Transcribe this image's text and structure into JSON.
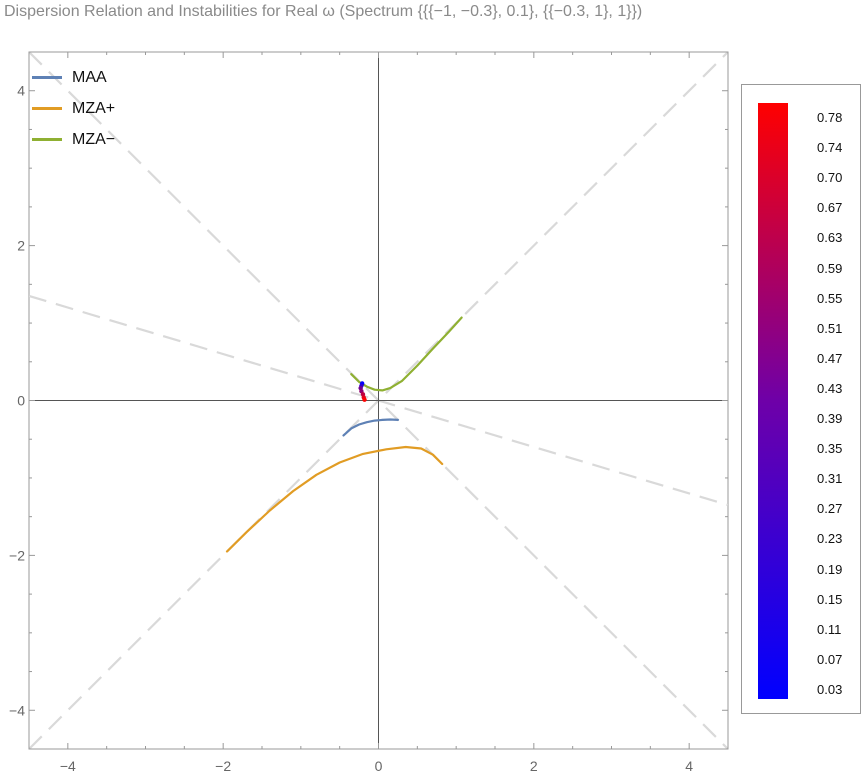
{
  "title": "Dispersion Relation and Instabilities for Real ω (Spectrum {{{−1, −0.3}, 0.1}, {{−0.3, 1}, 1}})",
  "colors": {
    "MAA": "#5e81b5",
    "MZA+": "#e19c24",
    "MZA-": "#8fb032",
    "guide_lines": "#d9d9d9",
    "axes": "#555555",
    "frame": "#999999"
  },
  "chart_data": {
    "type": "line",
    "title": "Dispersion Relation and Instabilities for Real ω (Spectrum {{{−1, −0.3}, 0.1}, {{−0.3, 1}, 1}})",
    "xlim": [
      -4.5,
      4.5
    ],
    "ylim": [
      -4.5,
      4.5
    ],
    "x_ticks": [
      "−4",
      "−2",
      "0",
      "2",
      "4"
    ],
    "x_tick_values": [
      -4,
      -2,
      0,
      2,
      4
    ],
    "y_ticks": [
      "−4",
      "−2",
      "0",
      "2",
      "4"
    ],
    "y_tick_values": [
      -4,
      -2,
      0,
      2,
      4
    ],
    "grid": false,
    "legend_position": "top-left",
    "series": [
      {
        "name": "MAA",
        "color": "#5e81b5",
        "points": [
          [
            -0.45,
            -0.45
          ],
          [
            -0.35,
            -0.36
          ],
          [
            -0.25,
            -0.31
          ],
          [
            -0.15,
            -0.28
          ],
          [
            -0.05,
            -0.26
          ],
          [
            0.05,
            -0.25
          ],
          [
            0.15,
            -0.245
          ],
          [
            0.25,
            -0.25
          ]
        ]
      },
      {
        "name": "MZA+",
        "color": "#e19c24",
        "points": [
          [
            -1.95,
            -1.95
          ],
          [
            -1.7,
            -1.7
          ],
          [
            -1.4,
            -1.42
          ],
          [
            -1.1,
            -1.17
          ],
          [
            -0.8,
            -0.96
          ],
          [
            -0.5,
            -0.8
          ],
          [
            -0.2,
            -0.69
          ],
          [
            0.1,
            -0.63
          ],
          [
            0.35,
            -0.6
          ],
          [
            0.55,
            -0.62
          ],
          [
            0.7,
            -0.7
          ],
          [
            0.82,
            -0.82
          ]
        ]
      },
      {
        "name": "MZA−",
        "color": "#8fb032",
        "points": [
          [
            -0.35,
            0.34
          ],
          [
            -0.25,
            0.24
          ],
          [
            -0.15,
            0.18
          ],
          [
            -0.05,
            0.14
          ],
          [
            0.05,
            0.13
          ],
          [
            0.15,
            0.16
          ],
          [
            0.3,
            0.25
          ],
          [
            0.5,
            0.45
          ],
          [
            0.7,
            0.67
          ],
          [
            0.9,
            0.88
          ],
          [
            1.07,
            1.07
          ]
        ]
      }
    ],
    "guide_lines": [
      {
        "style": "dashed",
        "from": [
          -4.5,
          -4.5
        ],
        "to": [
          4.5,
          4.5
        ]
      },
      {
        "style": "dashed",
        "from": [
          -4.5,
          4.5
        ],
        "to": [
          4.5,
          -4.5
        ]
      },
      {
        "style": "dashed",
        "from": [
          -4.5,
          1.35
        ],
        "to": [
          4.5,
          -1.35
        ]
      }
    ],
    "instability_points": [
      {
        "x": -0.21,
        "y": 0.22,
        "value": 0.03
      },
      {
        "x": -0.22,
        "y": 0.19,
        "value": 0.15
      },
      {
        "x": -0.23,
        "y": 0.16,
        "value": 0.35
      },
      {
        "x": -0.22,
        "y": 0.12,
        "value": 0.45
      },
      {
        "x": -0.2,
        "y": 0.08,
        "value": 0.59
      },
      {
        "x": -0.19,
        "y": 0.04,
        "value": 0.7
      },
      {
        "x": -0.18,
        "y": 0.01,
        "value": 0.78
      }
    ],
    "colorbar": {
      "range": [
        0.03,
        0.78
      ],
      "labels": [
        "0.78",
        "0.74",
        "0.70",
        "0.67",
        "0.63",
        "0.59",
        "0.55",
        "0.51",
        "0.47",
        "0.43",
        "0.39",
        "0.35",
        "0.31",
        "0.27",
        "0.23",
        "0.19",
        "0.15",
        "0.11",
        "0.07",
        "0.03"
      ],
      "low_color": "#0000ff",
      "high_color": "#ff0000"
    }
  },
  "legend": [
    {
      "label": "MAA",
      "color": "#5e81b5"
    },
    {
      "label": "MZA+",
      "color": "#e19c24"
    },
    {
      "label": "MZA−",
      "color": "#8fb032"
    }
  ]
}
